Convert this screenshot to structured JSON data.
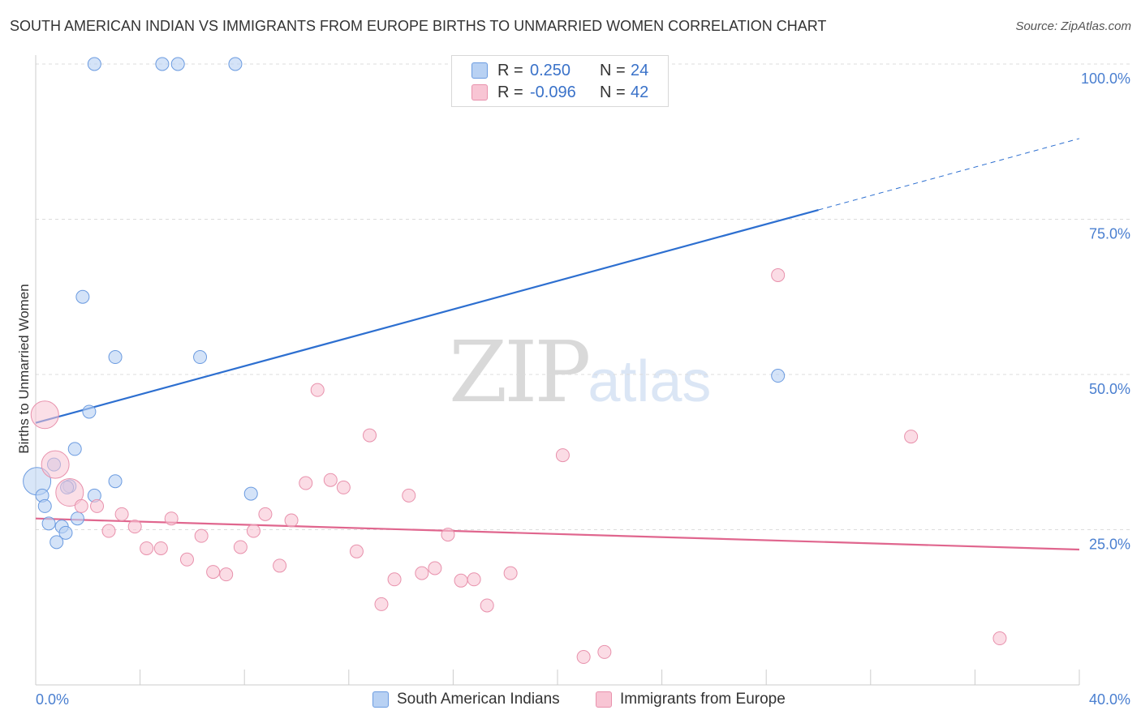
{
  "title": "SOUTH AMERICAN INDIAN VS IMMIGRANTS FROM EUROPE BIRTHS TO UNMARRIED WOMEN CORRELATION CHART",
  "source": "Source: ZipAtlas.com",
  "watermark": {
    "part1": "ZIP",
    "part2": "atlas"
  },
  "legend": {
    "rows": [
      {
        "r_label": "R =",
        "r_value": "0.250",
        "n_label": "N =",
        "n_value": "24"
      },
      {
        "r_label": "R =",
        "r_value": "-0.096",
        "n_label": "N =",
        "n_value": "42"
      }
    ]
  },
  "bottom_legend": {
    "series1": "South American Indians",
    "series2": "Immigrants from Europe"
  },
  "colors": {
    "blue_fill": "#b8d1f3",
    "blue_stroke": "#6b9be0",
    "blue_line": "#2d6fd0",
    "pink_fill": "#f8c5d4",
    "pink_stroke": "#e891ac",
    "pink_line": "#e0668e",
    "tick_text": "#4a7fd0",
    "grid": "#dcdcdc"
  },
  "chart_data": {
    "type": "scatter",
    "title": "SOUTH AMERICAN INDIAN VS IMMIGRANTS FROM EUROPE BIRTHS TO UNMARRIED WOMEN CORRELATION CHART",
    "xlabel": "",
    "ylabel": "Births to Unmarried Women",
    "xlim": [
      0,
      40
    ],
    "ylim": [
      0,
      100
    ],
    "x_tick_labels": [
      "0.0%",
      "40.0%"
    ],
    "y_tick_labels": [
      "100.0%",
      "75.0%",
      "50.0%",
      "25.0%"
    ],
    "y_ticks": [
      100,
      75,
      50,
      25
    ],
    "series": [
      {
        "name": "South American Indians",
        "color": "blue",
        "r": 0.25,
        "n": 24,
        "trend": {
          "x0": 0,
          "y0": 42.2,
          "x1": 30,
          "y1": 76.5,
          "dash_to_x": 40,
          "dash_to_y": 88.0
        },
        "points": [
          {
            "x": 0.05,
            "y": 32.8,
            "big": true
          },
          {
            "x": 0.25,
            "y": 30.5
          },
          {
            "x": 0.35,
            "y": 28.8
          },
          {
            "x": 0.5,
            "y": 26.0
          },
          {
            "x": 0.7,
            "y": 35.5
          },
          {
            "x": 0.8,
            "y": 23.0
          },
          {
            "x": 1.0,
            "y": 25.5
          },
          {
            "x": 1.15,
            "y": 24.5
          },
          {
            "x": 1.3,
            "y": 32.0
          },
          {
            "x": 1.5,
            "y": 38.0
          },
          {
            "x": 1.6,
            "y": 26.8
          },
          {
            "x": 1.8,
            "y": 62.5
          },
          {
            "x": 2.05,
            "y": 44.0
          },
          {
            "x": 2.25,
            "y": 100.0
          },
          {
            "x": 2.25,
            "y": 30.5
          },
          {
            "x": 3.05,
            "y": 52.8
          },
          {
            "x": 3.05,
            "y": 32.8
          },
          {
            "x": 4.85,
            "y": 100.0
          },
          {
            "x": 5.45,
            "y": 100.0
          },
          {
            "x": 6.3,
            "y": 52.8
          },
          {
            "x": 7.65,
            "y": 100.0
          },
          {
            "x": 8.25,
            "y": 30.8
          },
          {
            "x": 28.45,
            "y": 49.8
          },
          {
            "x": 1.2,
            "y": 31.8
          }
        ]
      },
      {
        "name": "Immigrants from Europe",
        "color": "pink",
        "r": -0.096,
        "n": 42,
        "trend": {
          "x0": 0,
          "y0": 26.8,
          "x1": 40,
          "y1": 21.8
        },
        "points": [
          {
            "x": 0.35,
            "y": 43.5,
            "big": true
          },
          {
            "x": 0.75,
            "y": 35.5,
            "big": true
          },
          {
            "x": 1.3,
            "y": 31.0,
            "big": true
          },
          {
            "x": 1.75,
            "y": 28.8
          },
          {
            "x": 2.35,
            "y": 28.8
          },
          {
            "x": 2.8,
            "y": 24.8
          },
          {
            "x": 3.3,
            "y": 27.5
          },
          {
            "x": 3.8,
            "y": 25.5
          },
          {
            "x": 4.25,
            "y": 22.0
          },
          {
            "x": 4.8,
            "y": 22.0
          },
          {
            "x": 5.2,
            "y": 26.8
          },
          {
            "x": 5.8,
            "y": 20.2
          },
          {
            "x": 6.35,
            "y": 24.0
          },
          {
            "x": 6.8,
            "y": 18.2
          },
          {
            "x": 7.3,
            "y": 17.8
          },
          {
            "x": 7.85,
            "y": 22.2
          },
          {
            "x": 8.35,
            "y": 24.8
          },
          {
            "x": 8.8,
            "y": 27.5
          },
          {
            "x": 9.35,
            "y": 19.2
          },
          {
            "x": 9.8,
            "y": 26.5
          },
          {
            "x": 10.35,
            "y": 32.5
          },
          {
            "x": 10.8,
            "y": 47.5
          },
          {
            "x": 11.3,
            "y": 33.0
          },
          {
            "x": 11.8,
            "y": 31.8
          },
          {
            "x": 12.3,
            "y": 21.5
          },
          {
            "x": 12.8,
            "y": 40.2
          },
          {
            "x": 13.25,
            "y": 13.0
          },
          {
            "x": 13.75,
            "y": 17.0
          },
          {
            "x": 14.3,
            "y": 30.5
          },
          {
            "x": 14.8,
            "y": 18.0
          },
          {
            "x": 15.3,
            "y": 18.8
          },
          {
            "x": 15.8,
            "y": 24.2
          },
          {
            "x": 16.3,
            "y": 16.8
          },
          {
            "x": 16.8,
            "y": 17.0
          },
          {
            "x": 17.3,
            "y": 12.8
          },
          {
            "x": 18.2,
            "y": 18.0
          },
          {
            "x": 20.2,
            "y": 37.0
          },
          {
            "x": 21.0,
            "y": 4.5
          },
          {
            "x": 21.8,
            "y": 5.3
          },
          {
            "x": 28.45,
            "y": 66.0
          },
          {
            "x": 33.55,
            "y": 40.0
          },
          {
            "x": 36.95,
            "y": 7.5
          }
        ]
      }
    ]
  }
}
